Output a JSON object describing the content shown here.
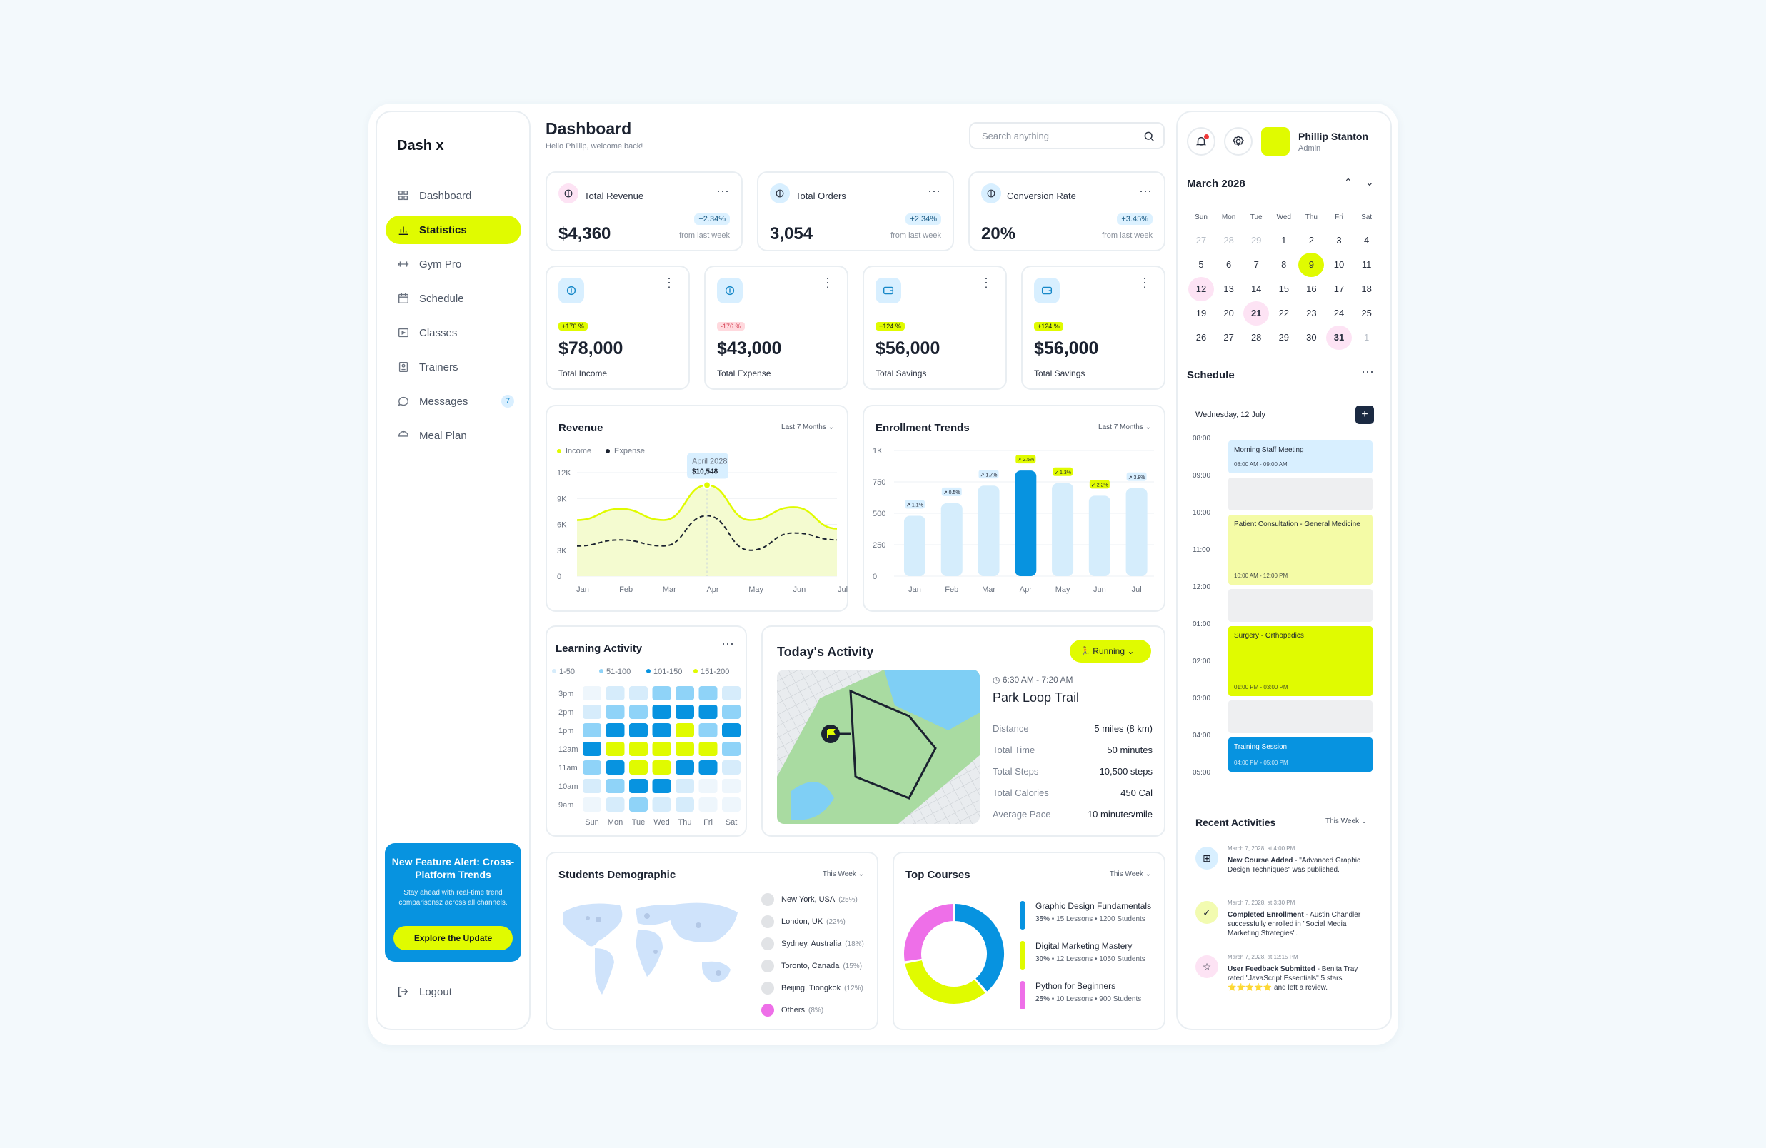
{
  "app": {
    "name": "Dash x"
  },
  "sidebar": {
    "items": [
      {
        "label": "Dashboard",
        "icon": "grid-icon"
      },
      {
        "label": "Statistics",
        "icon": "chart-icon",
        "active": true
      },
      {
        "label": "Gym Pro",
        "icon": "dumbbell-icon"
      },
      {
        "label": "Schedule",
        "icon": "calendar-icon"
      },
      {
        "label": "Classes",
        "icon": "video-icon"
      },
      {
        "label": "Trainers",
        "icon": "trainer-icon"
      },
      {
        "label": "Messages",
        "icon": "message-icon",
        "count": "7"
      },
      {
        "label": "Meal Plan",
        "icon": "meal-icon"
      }
    ],
    "promo": {
      "title": "New Feature Alert: Cross-Platform Trends",
      "text": "Stay ahead with real-time trend comparisonsz across all channels.",
      "button": "Explore the Update"
    },
    "logout": "Logout"
  },
  "header": {
    "title": "Dashboard",
    "subtitle": "Hello Phillip, welcome back!",
    "search_placeholder": "Search anything"
  },
  "kpis": [
    {
      "label": "Total Revenue",
      "value": "$4,360",
      "change": "+2.34%",
      "sub": "from last week"
    },
    {
      "label": "Total Orders",
      "value": "3,054",
      "change": "+2.34%",
      "sub": "from last week"
    },
    {
      "label": "Conversion Rate",
      "value": "20%",
      "change": "+3.45%",
      "sub": "from last week"
    }
  ],
  "finance": [
    {
      "label": "Total Income",
      "value": "$78,000",
      "tag": "+176 %",
      "trend": "up"
    },
    {
      "label": "Total Expense",
      "value": "$43,000",
      "tag": "-176 %",
      "trend": "down"
    },
    {
      "label": "Total Savings",
      "value": "$56,000",
      "tag": "+124 %",
      "trend": "up"
    },
    {
      "label": "Total Savings",
      "value": "$56,000",
      "tag": "+124 %",
      "trend": "up"
    }
  ],
  "revenue": {
    "title": "Revenue",
    "range": "Last 7 Months",
    "legend": [
      "Income",
      "Expense"
    ],
    "tooltip": {
      "label": "April 2028",
      "value": "$10,548"
    }
  },
  "enrollment": {
    "title": "Enrollment Trends",
    "range": "Last 7 Months"
  },
  "learning": {
    "title": "Learning Activity",
    "legend": [
      "1-50",
      "51-100",
      "101-150",
      "151-200"
    ],
    "rows": [
      "3pm",
      "2pm",
      "1pm",
      "12am",
      "11am",
      "10am",
      "9am"
    ],
    "days": [
      "Sun",
      "Mon",
      "Tue",
      "Wed",
      "Thu",
      "Fri",
      "Sat"
    ]
  },
  "activity": {
    "title": "Today's Activity",
    "mode": "Running",
    "time": "6:30 AM - 7:20 AM",
    "place": "Park Loop Trail",
    "stats": [
      {
        "k": "Distance",
        "v": "5 miles (8 km)"
      },
      {
        "k": "Total Time",
        "v": "50 minutes"
      },
      {
        "k": "Total Steps",
        "v": "10,500 steps"
      },
      {
        "k": "Total Calories",
        "v": "450 Cal"
      },
      {
        "k": "Average Pace",
        "v": "10 minutes/mile"
      }
    ]
  },
  "demographic": {
    "title": "Students Demographic",
    "range": "This Week",
    "locations": [
      {
        "name": "New York, USA",
        "pct": "(25%)"
      },
      {
        "name": "London, UK",
        "pct": "(22%)"
      },
      {
        "name": "Sydney, Australia",
        "pct": "(18%)"
      },
      {
        "name": "Toronto, Canada",
        "pct": "(15%)"
      },
      {
        "name": "Beijing, Tiongkok",
        "pct": "(12%)"
      },
      {
        "name": "Others",
        "pct": "(8%)"
      }
    ]
  },
  "courses": {
    "title": "Top Courses",
    "range": "This Week",
    "items": [
      {
        "name": "Graphic Design Fundamentals",
        "pct": "35%",
        "lessons": "15 Lessons",
        "students": "1200 Students",
        "color": "#0793e0"
      },
      {
        "name": "Digital Marketing Mastery",
        "pct": "30%",
        "lessons": "12 Lessons",
        "students": "1050 Students",
        "color": "#e0fb00"
      },
      {
        "name": "Python for Beginners",
        "pct": "25%",
        "lessons": "10 Lessons",
        "students": "900 Students",
        "color": "#ee6fe8"
      }
    ]
  },
  "user": {
    "name": "Phillip Stanton",
    "role": "Admin"
  },
  "calendar": {
    "month": "March 2028",
    "weekdays": [
      "Sun",
      "Mon",
      "Tue",
      "Wed",
      "Thu",
      "Fri",
      "Sat"
    ],
    "days": [
      "27",
      "28",
      "29",
      "1",
      "2",
      "3",
      "4",
      "5",
      "6",
      "7",
      "8",
      "9",
      "10",
      "11",
      "12",
      "13",
      "14",
      "15",
      "16",
      "17",
      "18",
      "19",
      "20",
      "21",
      "22",
      "23",
      "24",
      "25",
      "26",
      "27",
      "28",
      "29",
      "30",
      "31",
      "1"
    ]
  },
  "schedule": {
    "title": "Schedule",
    "date": "Wednesday, 12 July",
    "hours": [
      "08:00",
      "09:00",
      "10:00",
      "11:00",
      "12:00",
      "01:00",
      "02:00",
      "03:00",
      "04:00",
      "05:00"
    ],
    "events": [
      {
        "title": "Morning Staff Meeting",
        "time": "08:00 AM - 09:00 AM"
      },
      {
        "title": "Patient Consultation - General Medicine",
        "time": "10:00 AM - 12:00 PM"
      },
      {
        "title": "Surgery - Orthopedics",
        "time": "01:00 PM - 03:00 PM"
      },
      {
        "title": "Training Session",
        "time": "04:00 PM - 05:00 PM"
      }
    ]
  },
  "recent": {
    "title": "Recent Activities",
    "range": "This Week",
    "items": [
      {
        "date": "March 7, 2028, at 4:00 PM",
        "bold": "New Course Added",
        "text": " - \"Advanced Graphic Design Techniques\" was published."
      },
      {
        "date": "March 7, 2028, at 3:30 PM",
        "bold": "Completed Enrollment",
        "text": " - Austin Chandler successfully enrolled in \"Social Media Marketing Strategies\"."
      },
      {
        "date": "March 7, 2028, at 12:15 PM",
        "bold": "User Feedback Submitted",
        "text": " - Benita Tray rated \"JavaScript Essentials\" 5 stars ⭐⭐⭐⭐⭐ and left a review."
      }
    ]
  },
  "chart_data": [
    {
      "type": "line",
      "title": "Revenue",
      "x": [
        "Jan",
        "Feb",
        "Mar",
        "Apr",
        "May",
        "Jun",
        "Jul"
      ],
      "ylim": [
        0,
        12000
      ],
      "yticks": [
        "0",
        "3K",
        "6K",
        "9K",
        "12K"
      ],
      "series": [
        {
          "name": "Income",
          "color": "#e0fb00",
          "values": [
            6500,
            7800,
            6500,
            10548,
            6500,
            8000,
            5500
          ]
        },
        {
          "name": "Expense",
          "color": "#1b2230",
          "values": [
            3500,
            4200,
            3500,
            7000,
            3000,
            5000,
            4200
          ]
        }
      ]
    },
    {
      "type": "bar",
      "title": "Enrollment Trends",
      "categories": [
        "Jan",
        "Feb",
        "Mar",
        "Apr",
        "May",
        "Jun",
        "Jul"
      ],
      "ylim": [
        0,
        1000
      ],
      "yticks": [
        "0",
        "250",
        "500",
        "750",
        "1K"
      ],
      "values": [
        480,
        580,
        720,
        840,
        740,
        640,
        700
      ],
      "labels": [
        "↗ 1.1%",
        "↗ 0.5%",
        "↗ 1.7%",
        "↗ 2.5%",
        "↙ 1.3%",
        "↙ 2.2%",
        "↗ 3.8%"
      ],
      "label_kinds": [
        "up",
        "up",
        "up",
        "hi",
        "down",
        "down",
        "up"
      ]
    },
    {
      "type": "heatmap",
      "title": "Learning Activity",
      "rows": [
        "3pm",
        "2pm",
        "1pm",
        "12am",
        "11am",
        "10am",
        "9am"
      ],
      "cols": [
        "Sun",
        "Mon",
        "Tue",
        "Wed",
        "Thu",
        "Fri",
        "Sat"
      ],
      "levels": [
        [
          0,
          1,
          1,
          2,
          2,
          2,
          1
        ],
        [
          1,
          2,
          2,
          3,
          3,
          3,
          2
        ],
        [
          2,
          3,
          3,
          3,
          4,
          2,
          3
        ],
        [
          3,
          4,
          4,
          4,
          4,
          4,
          2
        ],
        [
          2,
          3,
          4,
          4,
          3,
          3,
          1
        ],
        [
          1,
          2,
          3,
          3,
          1,
          0,
          0
        ],
        [
          0,
          1,
          2,
          1,
          1,
          0,
          0
        ]
      ],
      "level_colors": [
        "#eef6fc",
        "#d6ecfb",
        "#8fd3f8",
        "#0793e0",
        "#e0fb00"
      ]
    },
    {
      "type": "pie",
      "title": "Top Courses",
      "labels": [
        "Graphic Design Fundamentals",
        "Digital Marketing Mastery",
        "Python for Beginners"
      ],
      "values": [
        35,
        30,
        25
      ],
      "colors": [
        "#0793e0",
        "#e0fb00",
        "#ee6fe8"
      ]
    }
  ]
}
